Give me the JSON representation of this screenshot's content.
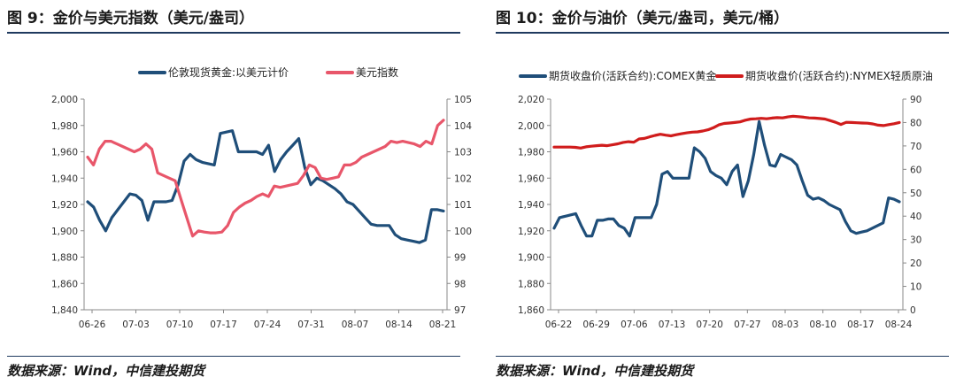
{
  "panels": [
    {
      "title": "图 9：金价与美元指数（美元/盎司）",
      "source": "数据来源：Wind，中信建投期货",
      "chart_data": {
        "type": "line",
        "legend_position": "top-center",
        "grid": false,
        "x_ticks": [
          "06-26",
          "07-03",
          "07-10",
          "07-17",
          "07-24",
          "07-31",
          "08-07",
          "08-14",
          "08-21"
        ],
        "y_left": {
          "min": 1840,
          "max": 2000,
          "step": 20,
          "tick_labels": [
            "1,840",
            "1,860",
            "1,880",
            "1,900",
            "1,920",
            "1,940",
            "1,960",
            "1,980",
            "2,000"
          ]
        },
        "y_right": {
          "min": 97,
          "max": 105,
          "step": 1,
          "tick_labels": [
            "97",
            "98",
            "99",
            "100",
            "101",
            "102",
            "103",
            "104",
            "105"
          ]
        },
        "series": [
          {
            "name": "伦敦现货黄金:以美元计价",
            "axis": "left",
            "color": "#1f4e79",
            "values": [
              1922,
              1918,
              1908,
              1900,
              1910,
              1916,
              1922,
              1928,
              1927,
              1923,
              1908,
              1922,
              1922,
              1922,
              1923,
              1935,
              1953,
              1958,
              1954,
              1952,
              1951,
              1950,
              1974,
              1975,
              1976,
              1960,
              1960,
              1960,
              1960,
              1958,
              1965,
              1945,
              1954,
              1960,
              1965,
              1970,
              1948,
              1935,
              1940,
              1938,
              1935,
              1932,
              1928,
              1922,
              1920,
              1915,
              1910,
              1905,
              1904,
              1904,
              1904,
              1897,
              1894,
              1893,
              1892,
              1891,
              1893,
              1916,
              1916,
              1915
            ]
          },
          {
            "name": "美元指数",
            "axis": "right",
            "color": "#e8566a",
            "values": [
              102.8,
              102.5,
              103.1,
              103.4,
              103.4,
              103.3,
              103.2,
              103.1,
              103.0,
              103.1,
              103.3,
              103.1,
              102.2,
              102.1,
              102.0,
              101.9,
              101.2,
              100.5,
              99.8,
              100.0,
              99.95,
              99.92,
              99.92,
              99.95,
              100.2,
              100.7,
              100.9,
              101.05,
              101.15,
              101.3,
              101.4,
              101.3,
              101.7,
              101.65,
              101.7,
              101.75,
              101.8,
              102.1,
              102.5,
              102.4,
              102.0,
              101.95,
              102.0,
              102.05,
              102.5,
              102.5,
              102.6,
              102.8,
              102.9,
              103.0,
              103.1,
              103.2,
              103.4,
              103.35,
              103.4,
              103.35,
              103.3,
              103.2,
              103.4,
              103.3,
              104.0,
              104.2
            ]
          }
        ]
      }
    },
    {
      "title": "图 10：金价与油价（美元/盎司，美元/桶）",
      "source": "数据来源：Wind，中信建投期货",
      "chart_data": {
        "type": "line",
        "legend_position": "top-center",
        "grid": false,
        "x_ticks": [
          "06-22",
          "06-29",
          "07-06",
          "07-13",
          "07-20",
          "07-27",
          "08-03",
          "08-10",
          "08-17",
          "08-24"
        ],
        "y_left": {
          "min": 1860,
          "max": 2020,
          "step": 20,
          "tick_labels": [
            "1,860",
            "1,880",
            "1,900",
            "1,920",
            "1,940",
            "1,960",
            "1,980",
            "2,000",
            "2,020"
          ]
        },
        "y_right": {
          "min": 0,
          "max": 90,
          "step": 10,
          "tick_labels": [
            "0",
            "10",
            "20",
            "30",
            "40",
            "50",
            "60",
            "70",
            "80",
            "90"
          ]
        },
        "series": [
          {
            "name": "期货收盘价(活跃合约):COMEX黄金",
            "axis": "left",
            "color": "#1f4e79",
            "values": [
              1922,
              1930,
              1931,
              1932,
              1933,
              1924,
              1916,
              1916,
              1928,
              1928,
              1929,
              1929,
              1924,
              1922,
              1916,
              1930,
              1930,
              1930,
              1930,
              1940,
              1963,
              1965,
              1960,
              1960,
              1960,
              1960,
              1983,
              1980,
              1975,
              1965,
              1962,
              1960,
              1955,
              1965,
              1970,
              1946,
              1958,
              1978,
              2003,
              1985,
              1970,
              1969,
              1978,
              1976,
              1974,
              1970,
              1958,
              1947,
              1944,
              1945,
              1943,
              1940,
              1938,
              1936,
              1927,
              1920,
              1918,
              1919,
              1920,
              1922,
              1924,
              1926,
              1945,
              1944,
              1942
            ]
          },
          {
            "name": "期货收盘价(活跃合约):NYMEX轻质原油",
            "axis": "right",
            "color": "#d01c1c",
            "values": [
              69.5,
              69.5,
              69.5,
              69.5,
              69.4,
              69.1,
              69.6,
              69.9,
              70.1,
              70.3,
              70.1,
              70.5,
              70.9,
              71.5,
              71.8,
              71.6,
              73.0,
              73.2,
              73.9,
              74.5,
              75.0,
              74.6,
              74.3,
              74.8,
              75.2,
              75.6,
              75.9,
              76.0,
              76.4,
              76.9,
              77.8,
              79.0,
              79.6,
              79.8,
              80.0,
              80.3,
              81.0,
              81.5,
              81.6,
              81.8,
              81.6,
              81.9,
              82.1,
              82.0,
              82.4,
              82.7,
              82.5,
              82.3,
              82.0,
              81.9,
              81.7,
              81.5,
              80.8,
              80.1,
              79.2,
              80.1,
              80.0,
              79.9,
              79.8,
              79.7,
              79.4,
              78.9,
              78.7,
              79.1,
              79.5,
              80.0
            ]
          }
        ]
      }
    }
  ]
}
